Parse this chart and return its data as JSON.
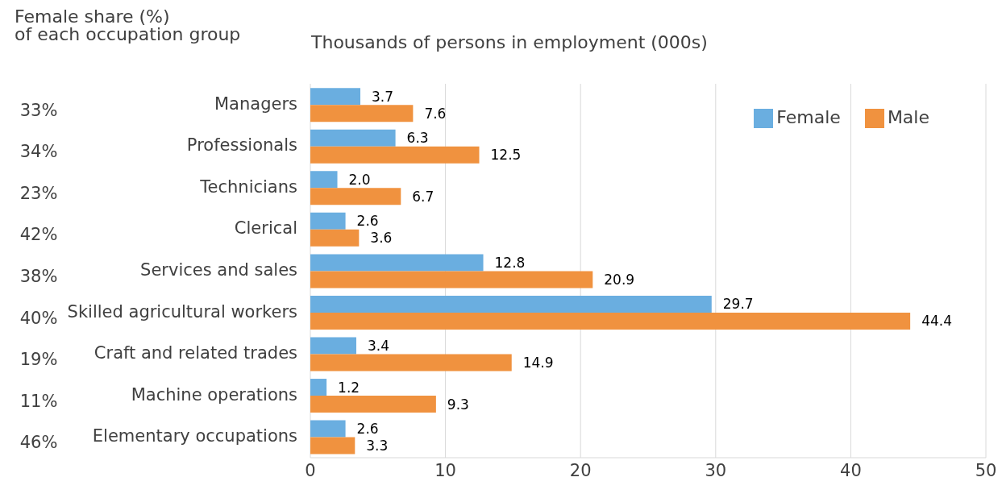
{
  "chart_data": {
    "type": "bar",
    "orientation": "horizontal",
    "title": "Thousands of persons in employment (000s)",
    "categories": [
      "Managers",
      "Professionals",
      "Technicians",
      "Clerical",
      "Services and sales",
      "Skilled agricultural workers",
      "Craft and related trades",
      "Machine operations",
      "Elementary occupations"
    ],
    "series": [
      {
        "name": "Female",
        "color": "#6aaee0",
        "values": [
          3.7,
          6.3,
          2.0,
          2.6,
          12.8,
          29.7,
          3.4,
          1.2,
          2.6
        ],
        "value_labels": [
          "3.7",
          "6.3",
          "2.0",
          "2.6",
          "12.8",
          "29.7",
          "3.4",
          "1.2",
          "2.6"
        ]
      },
      {
        "name": "Male",
        "color": "#f0923f",
        "values": [
          7.6,
          12.5,
          6.7,
          3.6,
          20.9,
          44.4,
          14.9,
          9.3,
          3.3
        ],
        "value_labels": [
          "7.6",
          "12.5",
          "6.7",
          "3.6",
          "20.9",
          "44.4",
          "14.9",
          "9.3",
          "3.3"
        ]
      }
    ],
    "xlim": [
      0,
      50
    ],
    "xticks": [
      0,
      10,
      20,
      30,
      40,
      50
    ],
    "grid": "x",
    "legend": "top right",
    "annotations": [
      "Female share (%)\nof each occupation group",
      "33%",
      "34%",
      "23%",
      "42%",
      "38%",
      "40%",
      "19%",
      "11%",
      "46%"
    ]
  }
}
